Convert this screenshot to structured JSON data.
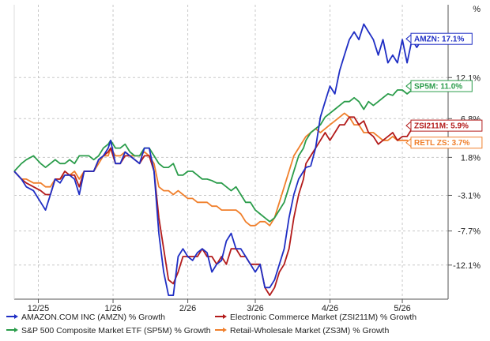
{
  "colors": {
    "amzn": "#1f2ec4",
    "zsi211m": "#b31b1b",
    "sp5m": "#2a9c4a",
    "zs3m": "#f07f2b",
    "grid": "#c8c8c8",
    "axis": "#555555",
    "background": "#ffffff"
  },
  "chart_data": {
    "type": "line",
    "title": "",
    "xlabel": "",
    "ylabel": "% Growth",
    "ylim": [
      -16.5,
      21.5
    ],
    "xlim": [
      0,
      180
    ],
    "grid": true,
    "legend_position": "bottom",
    "y_ticks": [
      {
        "value": 12.1,
        "label": "12.1%"
      },
      {
        "value": 6.8,
        "label": "6.8%"
      },
      {
        "value": 1.8,
        "label": "1.8%"
      },
      {
        "value": -3.1,
        "label": "-3.1%"
      },
      {
        "value": -7.7,
        "label": "-7.7%"
      },
      {
        "value": -12.1,
        "label": "-12.1%"
      }
    ],
    "top_tick_label": "%",
    "x_ticks": [
      {
        "pos": 10,
        "label": "12/25"
      },
      {
        "pos": 41,
        "label": "1/26"
      },
      {
        "pos": 72,
        "label": "2/26"
      },
      {
        "pos": 100,
        "label": "3/26"
      },
      {
        "pos": 131,
        "label": "4/26"
      },
      {
        "pos": 161,
        "label": "5/26"
      }
    ],
    "callouts": [
      {
        "series": "AMZN",
        "text": "AMZN: 17.1%",
        "value": 17.1
      },
      {
        "series": "SP5M",
        "text": "SP5M: 11.0%",
        "value": 11.0
      },
      {
        "series": "ZSI211M",
        "text": "ZSI211M: 5.9%",
        "value": 5.9
      },
      {
        "series": "ZS3M",
        "text": "RETL ZS: 3.7%",
        "value": 3.7
      }
    ],
    "series": [
      {
        "key": "AMZN",
        "name": "AMAZON.COM INC (AMZN) % Growth",
        "x": [
          0,
          3,
          5,
          8,
          11,
          13,
          15,
          17,
          19,
          21,
          23,
          25,
          27,
          29,
          31,
          33,
          35,
          37,
          39,
          40,
          42,
          44,
          46,
          48,
          50,
          52,
          54,
          56,
          58,
          60,
          62,
          64,
          66,
          68,
          70,
          72,
          74,
          76,
          78,
          80,
          82,
          84,
          86,
          88,
          90,
          92,
          94,
          96,
          98,
          100,
          102,
          104,
          106,
          108,
          110,
          112,
          114,
          116,
          118,
          120,
          121,
          123,
          125,
          127,
          129,
          131,
          133,
          135,
          137,
          139,
          141,
          143,
          145,
          147,
          149,
          151,
          153,
          155,
          157,
          159,
          161,
          163,
          165,
          167,
          169,
          171
        ],
        "values": [
          0,
          -1,
          -2,
          -2.5,
          -4,
          -5,
          -3,
          -1,
          -1.5,
          -0.5,
          -0.5,
          -1,
          -3,
          0,
          0,
          0,
          1.5,
          2,
          3,
          4,
          1,
          1,
          2.5,
          2,
          1.5,
          1,
          3,
          3,
          0,
          -8,
          -13,
          -16,
          -16,
          -11,
          -10,
          -11,
          -11.5,
          -10.5,
          -10,
          -10.5,
          -13,
          -12,
          -11.5,
          -9,
          -8,
          -10,
          -10,
          -11,
          -12,
          -13,
          -12,
          -15,
          -15,
          -14,
          -12,
          -10,
          -6,
          -3,
          -1,
          0,
          0.5,
          0.7,
          3,
          7,
          9,
          11,
          10,
          13,
          15,
          17,
          18,
          17,
          19,
          18,
          17,
          15,
          17,
          14,
          15,
          14,
          17,
          14,
          17,
          16,
          17,
          17.1
        ]
      },
      {
        "key": "ZSI211M",
        "name": "Electronic Commerce Market (ZSI211M) % Growth",
        "x": [
          0,
          3,
          5,
          8,
          11,
          13,
          15,
          17,
          19,
          21,
          23,
          25,
          27,
          29,
          31,
          33,
          35,
          37,
          39,
          40,
          42,
          44,
          46,
          48,
          50,
          52,
          54,
          56,
          58,
          60,
          62,
          64,
          66,
          68,
          70,
          72,
          74,
          76,
          78,
          80,
          82,
          84,
          86,
          88,
          90,
          92,
          94,
          96,
          98,
          100,
          102,
          104,
          106,
          108,
          110,
          112,
          114,
          116,
          118,
          120,
          121,
          123,
          125,
          127,
          129,
          131,
          133,
          135,
          137,
          139,
          141,
          143,
          145,
          147,
          149,
          151,
          153,
          155,
          157,
          159,
          161,
          163,
          165,
          167,
          169,
          171
        ],
        "values": [
          0,
          -1,
          -1.5,
          -2,
          -2.5,
          -3,
          -3,
          -1,
          -1,
          0,
          -0.5,
          -0.5,
          -2,
          0,
          0,
          0,
          1.5,
          2,
          2.5,
          3,
          1,
          1,
          2,
          2,
          1.5,
          1,
          2,
          2,
          0,
          -6,
          -10,
          -14,
          -14.5,
          -13,
          -11,
          -11,
          -11,
          -11,
          -10,
          -11,
          -11,
          -12,
          -11,
          -12,
          -10,
          -10,
          -11,
          -11,
          -12,
          -12,
          -12,
          -15,
          -16,
          -15,
          -13,
          -12,
          -10,
          -6,
          -3,
          -1,
          1,
          2,
          3,
          4,
          5,
          4,
          5,
          6,
          6,
          7,
          7,
          6,
          6.5,
          5,
          4.5,
          3.5,
          4,
          4.5,
          5,
          4,
          4.5,
          4.5,
          5.5,
          5.5,
          5.7,
          5.9
        ]
      },
      {
        "key": "SP5M",
        "name": "S&P 500 Composite Market ETF (SP5M) % Growth",
        "x": [
          0,
          3,
          5,
          8,
          11,
          13,
          15,
          17,
          19,
          21,
          23,
          25,
          27,
          29,
          31,
          33,
          35,
          37,
          39,
          40,
          42,
          44,
          46,
          48,
          50,
          52,
          54,
          56,
          58,
          60,
          62,
          64,
          66,
          68,
          70,
          72,
          74,
          76,
          78,
          80,
          82,
          84,
          86,
          88,
          90,
          92,
          94,
          96,
          98,
          100,
          102,
          104,
          106,
          108,
          110,
          112,
          114,
          116,
          118,
          120,
          121,
          123,
          125,
          127,
          129,
          131,
          133,
          135,
          137,
          139,
          141,
          143,
          145,
          147,
          149,
          151,
          153,
          155,
          157,
          159,
          161,
          163,
          165,
          167,
          169,
          171
        ],
        "values": [
          0,
          1,
          1.5,
          2,
          1,
          0.5,
          1,
          1.5,
          1,
          1,
          1.5,
          1,
          2,
          2,
          2,
          1.5,
          2,
          3,
          3.5,
          4,
          3,
          3,
          3.5,
          2.5,
          2,
          2,
          3,
          3,
          2,
          1,
          0.5,
          0.5,
          1,
          -0.5,
          -0.5,
          0,
          0,
          -0.5,
          -1,
          -1,
          -1.2,
          -1.5,
          -1.5,
          -2,
          -2.5,
          -2,
          -3,
          -4,
          -4,
          -5,
          -5.5,
          -6,
          -6.5,
          -6,
          -5,
          -4,
          -2,
          0,
          2,
          3,
          4,
          5,
          5.5,
          6,
          7,
          7.5,
          8,
          8.5,
          9,
          9,
          9.5,
          9,
          8,
          9,
          8.5,
          9,
          9.5,
          10,
          9.8,
          10.5,
          10.5,
          10,
          10.5,
          10.8,
          11,
          11.0
        ]
      },
      {
        "key": "ZS3M",
        "name": "Retail-Wholesale Market (ZS3M) % Growth",
        "x": [
          0,
          3,
          5,
          8,
          11,
          13,
          15,
          17,
          19,
          21,
          23,
          25,
          27,
          29,
          31,
          33,
          35,
          37,
          39,
          40,
          42,
          44,
          46,
          48,
          50,
          52,
          54,
          56,
          58,
          60,
          62,
          64,
          66,
          68,
          70,
          72,
          74,
          76,
          78,
          80,
          82,
          84,
          86,
          88,
          90,
          92,
          94,
          96,
          98,
          100,
          102,
          104,
          106,
          108,
          110,
          112,
          114,
          116,
          118,
          120,
          121,
          123,
          125,
          127,
          129,
          131,
          133,
          135,
          137,
          139,
          141,
          143,
          145,
          147,
          149,
          151,
          153,
          155,
          157,
          159,
          161,
          163,
          165,
          167,
          169,
          171
        ],
        "values": [
          0,
          -1,
          -1,
          -1.5,
          -1.5,
          -2,
          -2,
          -1,
          -1,
          -0.5,
          -0.5,
          0,
          -1,
          0,
          0,
          0,
          1,
          2,
          2,
          3,
          2,
          2,
          2.5,
          2,
          2,
          2,
          2.5,
          2,
          1,
          -2,
          -2.5,
          -2.5,
          -3,
          -2.5,
          -3,
          -3.5,
          -3.5,
          -4,
          -4,
          -4,
          -4.5,
          -4.5,
          -5,
          -5,
          -5,
          -5,
          -5.5,
          -6.5,
          -7,
          -7,
          -6.5,
          -6.5,
          -7,
          -6,
          -4,
          -2,
          0,
          2,
          3,
          4,
          4.5,
          5,
          5.5,
          5,
          5.5,
          6,
          6.5,
          7,
          7.5,
          7,
          6,
          6,
          5,
          5,
          5,
          4.5,
          4,
          4,
          4.5,
          4,
          4,
          4,
          3.5,
          4,
          3.8,
          3.7
        ]
      }
    ]
  }
}
